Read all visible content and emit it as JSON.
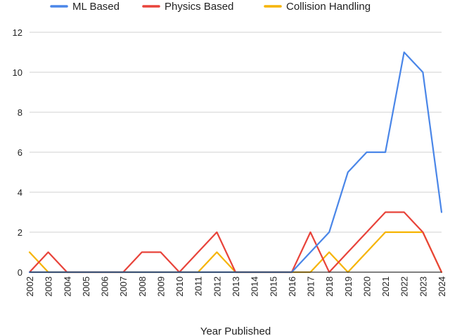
{
  "chart_data": {
    "type": "line",
    "title": "",
    "xlabel": "Year Published",
    "ylabel": "",
    "ylim": [
      0,
      12
    ],
    "yticks": [
      0,
      2,
      4,
      6,
      8,
      10,
      12
    ],
    "grid": true,
    "legend_position": "top",
    "categories": [
      "2002",
      "2003",
      "2004",
      "2005",
      "2006",
      "2007",
      "2008",
      "2009",
      "2010",
      "2011",
      "2012",
      "2013",
      "2014",
      "2015",
      "2016",
      "2017",
      "2018",
      "2019",
      "2020",
      "2021",
      "2022",
      "2023",
      "2024"
    ],
    "series": [
      {
        "name": "ML Based",
        "color": "#4a86e8",
        "values": [
          0,
          0,
          0,
          0,
          0,
          0,
          0,
          0,
          0,
          0,
          0,
          0,
          0,
          0,
          0,
          1,
          2,
          5,
          6,
          6,
          11,
          10,
          3
        ]
      },
      {
        "name": "Physics Based",
        "color": "#e8433a",
        "values": [
          0,
          1,
          0,
          0,
          0,
          0,
          1,
          1,
          0,
          1,
          2,
          0,
          0,
          0,
          0,
          2,
          0,
          1,
          2,
          3,
          3,
          2,
          0
        ]
      },
      {
        "name": "Collision Handling",
        "color": "#f6b400",
        "values": [
          1,
          0,
          0,
          0,
          0,
          0,
          0,
          0,
          0,
          0,
          1,
          0,
          0,
          0,
          0,
          0,
          1,
          0,
          1,
          2,
          2,
          2,
          0
        ]
      }
    ]
  }
}
